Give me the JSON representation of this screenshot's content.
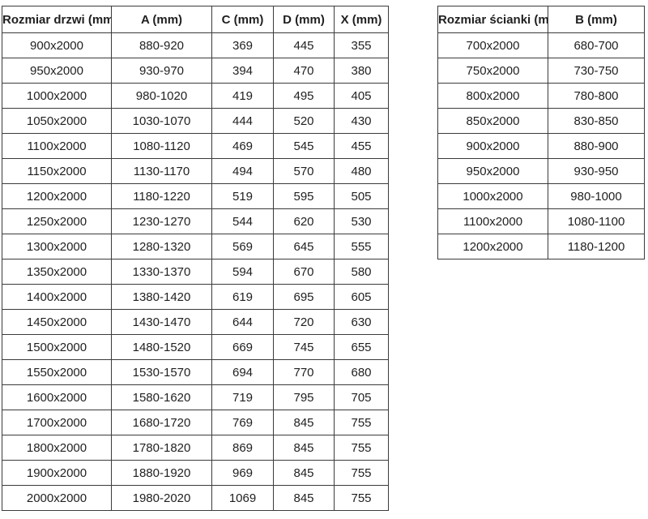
{
  "tables": {
    "doors": {
      "name": "door-sizes-table",
      "headers": [
        "Rozmiar drzwi (mm)",
        "A (mm)",
        "C (mm)",
        "D (mm)",
        "X (mm)"
      ],
      "rows": [
        [
          "900x2000",
          "880-920",
          "369",
          "445",
          "355"
        ],
        [
          "950x2000",
          "930-970",
          "394",
          "470",
          "380"
        ],
        [
          "1000x2000",
          "980-1020",
          "419",
          "495",
          "405"
        ],
        [
          "1050x2000",
          "1030-1070",
          "444",
          "520",
          "430"
        ],
        [
          "1100x2000",
          "1080-1120",
          "469",
          "545",
          "455"
        ],
        [
          "1150x2000",
          "1130-1170",
          "494",
          "570",
          "480"
        ],
        [
          "1200x2000",
          "1180-1220",
          "519",
          "595",
          "505"
        ],
        [
          "1250x2000",
          "1230-1270",
          "544",
          "620",
          "530"
        ],
        [
          "1300x2000",
          "1280-1320",
          "569",
          "645",
          "555"
        ],
        [
          "1350x2000",
          "1330-1370",
          "594",
          "670",
          "580"
        ],
        [
          "1400x2000",
          "1380-1420",
          "619",
          "695",
          "605"
        ],
        [
          "1450x2000",
          "1430-1470",
          "644",
          "720",
          "630"
        ],
        [
          "1500x2000",
          "1480-1520",
          "669",
          "745",
          "655"
        ],
        [
          "1550x2000",
          "1530-1570",
          "694",
          "770",
          "680"
        ],
        [
          "1600x2000",
          "1580-1620",
          "719",
          "795",
          "705"
        ],
        [
          "1700x2000",
          "1680-1720",
          "769",
          "845",
          "755"
        ],
        [
          "1800x2000",
          "1780-1820",
          "869",
          "845",
          "755"
        ],
        [
          "1900x2000",
          "1880-1920",
          "969",
          "845",
          "755"
        ],
        [
          "2000x2000",
          "1980-2020",
          "1069",
          "845",
          "755"
        ]
      ]
    },
    "wall": {
      "name": "wall-panel-sizes-table",
      "headers": [
        "Rozmiar ścianki (mm)",
        "B (mm)"
      ],
      "rows": [
        [
          "700x2000",
          "680-700"
        ],
        [
          "750x2000",
          "730-750"
        ],
        [
          "800x2000",
          "780-800"
        ],
        [
          "850x2000",
          "830-850"
        ],
        [
          "900x2000",
          "880-900"
        ],
        [
          "950x2000",
          "930-950"
        ],
        [
          "1000x2000",
          "980-1000"
        ],
        [
          "1100x2000",
          "1080-1100"
        ],
        [
          "1200x2000",
          "1180-1200"
        ]
      ]
    }
  },
  "colors": {
    "background": "#ffffff",
    "border": "#3b3b3b",
    "text": "#1f1f1f"
  }
}
